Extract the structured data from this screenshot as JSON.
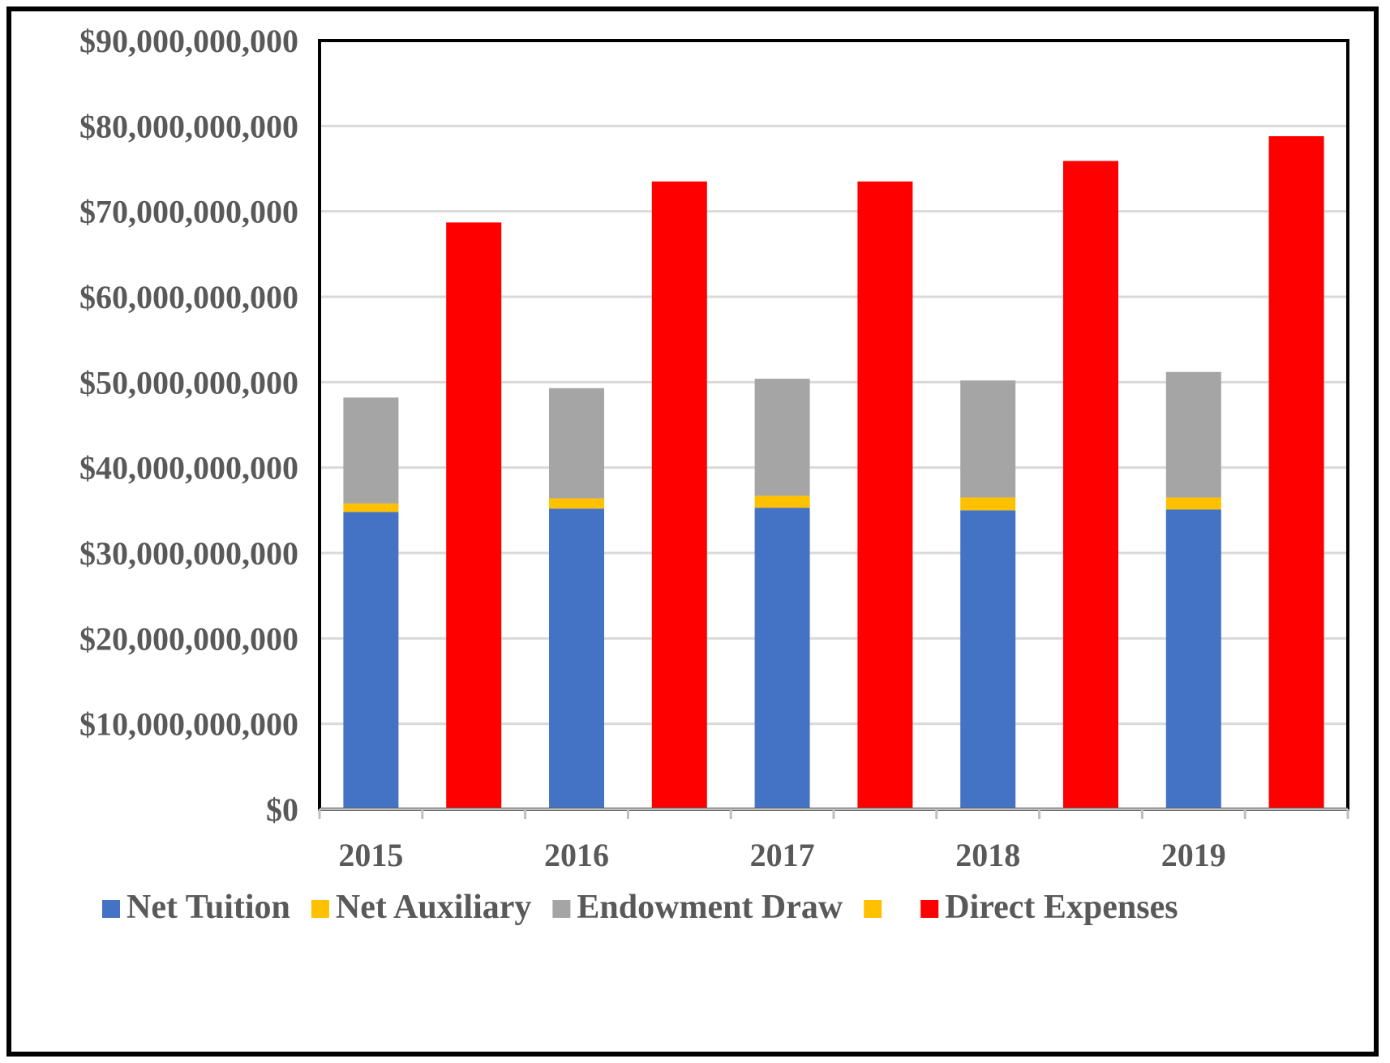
{
  "chart_data": {
    "type": "bar",
    "categories": [
      "2015",
      "2016",
      "2017",
      "2018",
      "2019"
    ],
    "stacked_series": [
      {
        "name": "Net Tuition",
        "color": "#4472C4",
        "values": [
          34800000000,
          35200000000,
          35300000000,
          35000000000,
          35100000000
        ]
      },
      {
        "name": "Net Auxiliary",
        "color": "#FFC000",
        "values": [
          1000000000,
          1200000000,
          1400000000,
          1500000000,
          1400000000
        ]
      },
      {
        "name": "Endowment Draw",
        "color": "#A5A5A5",
        "values": [
          12400000000,
          12900000000,
          13700000000,
          13700000000,
          14700000000
        ]
      }
    ],
    "side_series": [
      {
        "name": "Direct Expenses",
        "color": "#FF0000",
        "values": [
          68700000000,
          73500000000,
          73500000000,
          75900000000,
          78800000000
        ]
      }
    ],
    "legend": [
      {
        "label": "Net Tuition",
        "color": "#4472C4"
      },
      {
        "label": "Net Auxiliary",
        "color": "#FFC000"
      },
      {
        "label": "Endowment Draw",
        "color": "#A5A5A5"
      },
      {
        "label": "",
        "color": "#FFC000"
      },
      {
        "label": "Direct Expenses",
        "color": "#FF0000"
      }
    ],
    "legend_position": "bottom",
    "ylim": [
      0,
      90000000000
    ],
    "yticks": [
      "$0",
      "$10,000,000,000",
      "$20,000,000,000",
      "$30,000,000,000",
      "$40,000,000,000",
      "$50,000,000,000",
      "$60,000,000,000",
      "$70,000,000,000",
      "$80,000,000,000",
      "$90,000,000,000"
    ],
    "grid": true,
    "title": "",
    "xlabel": "",
    "ylabel": ""
  }
}
